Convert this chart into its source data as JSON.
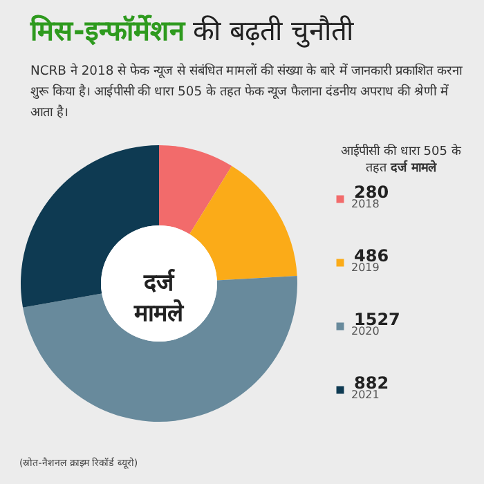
{
  "chart_data": {
    "type": "donut",
    "title": "मिस-इन्फॉर्मेशन की बढ़ती चुनौती",
    "subtitle": "NCRB ने 2018 से फेक न्यूज से संबंधित मामलों की संख्या के बारे में जानकारी प्रकाशित करना शुरू किया है। आईपीसी की धारा 505 के तहत फेक न्यूज फैलाना दंडनीय अपराध की श्रेणी में आता है।",
    "legend_title": "आईपीसी की धारा 505 के तहत दर्ज मामले",
    "categories": [
      "2018",
      "2019",
      "2020",
      "2021"
    ],
    "values": [
      280,
      486,
      1527,
      882
    ],
    "colors": [
      "#f26b6b",
      "#fbab18",
      "#688a9c",
      "#0e3a52"
    ],
    "data_labels": true,
    "legend": "right",
    "annotations": [
      "दर्ज मामले",
      "(स्रोत-नैशनल क्राइम रिकॉर्ड ब्यूरो)"
    ]
  }
}
